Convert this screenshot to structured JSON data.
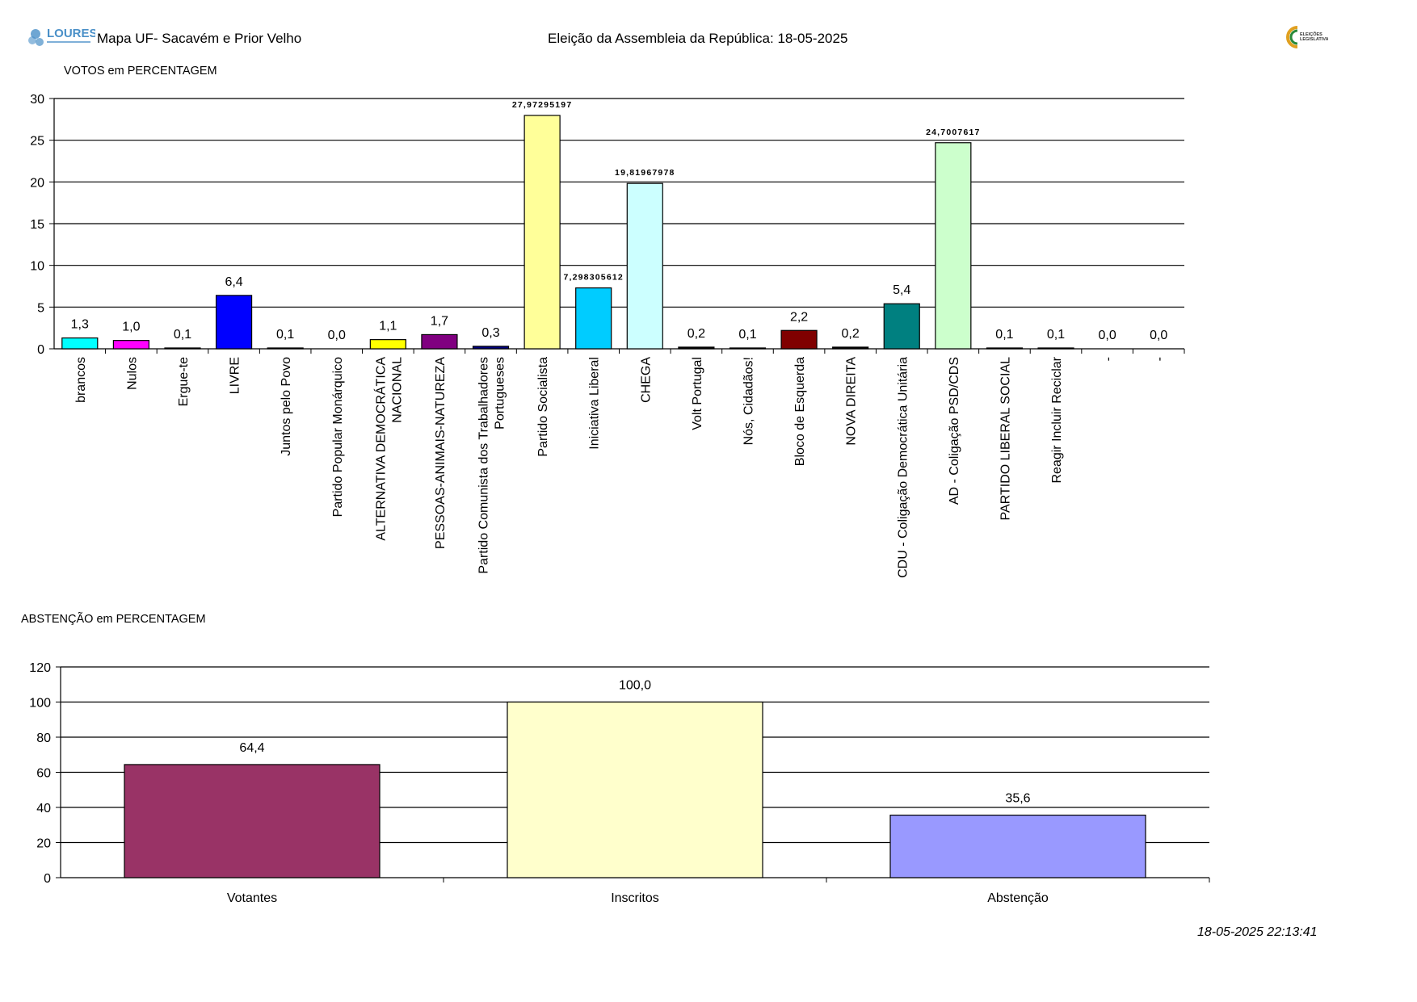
{
  "header": {
    "logo_text": "LOURES",
    "map_title": "Mapa UF- Sacavém e Prior Velho",
    "election_title": "Eleição da Assembleia da República: 18-05-2025",
    "right_logo_text": "ELEIÇÕES LEGISLATIVAS"
  },
  "colors": {
    "gridline": "#000000",
    "bar_border": "#000000",
    "loures_logo": "#4a90c8",
    "right_logo": "#e0a020"
  },
  "chart_data": [
    {
      "type": "bar",
      "title": "VOTOS em PERCENTAGEM",
      "xlabel": "",
      "ylabel": "",
      "ylim": [
        0,
        30
      ],
      "yticks": [
        0,
        5,
        10,
        15,
        20,
        25,
        30
      ],
      "grid": true,
      "legend": "none",
      "categories": [
        "brancos",
        "Nulos",
        "Ergue-te",
        "LIVRE",
        "Juntos pelo Povo",
        "Partido Popular Monárquico",
        "ALTERNATIVA DEMOCRÁTICA NACIONAL",
        "PESSOAS-ANIMAIS-NATUREZA",
        "Partido Comunista dos Trabalhadores Portugueses",
        "Partido Socialista",
        "Iniciativa Liberal",
        "CHEGA",
        "Volt Portugal",
        "Nós, Cidadãos!",
        "Bloco de Esquerda",
        "NOVA DIREITA",
        "CDU - Coligação Democrática Unitária",
        "AD - Coligação PSD/CDS",
        "PARTIDO LIBERAL SOCIAL",
        "Reagir Incluir Reciclar",
        "-",
        "-"
      ],
      "category_lines": [
        [
          "brancos"
        ],
        [
          "Nulos"
        ],
        [
          "Ergue-te"
        ],
        [
          "LIVRE"
        ],
        [
          "Juntos pelo Povo"
        ],
        [
          "Partido Popular Monárquico"
        ],
        [
          "ALTERNATIVA DEMOCRÁTICA",
          "NACIONAL"
        ],
        [
          "PESSOAS-ANIMAIS-NATUREZA"
        ],
        [
          "Partido Comunista dos Trabalhadores",
          "Portugueses"
        ],
        [
          "Partido Socialista"
        ],
        [
          "Iniciativa Liberal"
        ],
        [
          "CHEGA"
        ],
        [
          "Volt Portugal"
        ],
        [
          "Nós, Cidadãos!"
        ],
        [
          "Bloco de Esquerda"
        ],
        [
          "NOVA DIREITA"
        ],
        [
          "CDU - Coligação Democrática Unitária"
        ],
        [
          "AD - Coligação PSD/CDS"
        ],
        [
          "PARTIDO LIBERAL SOCIAL"
        ],
        [
          "Reagir Incluir Reciclar"
        ],
        [
          "-"
        ],
        [
          "-"
        ]
      ],
      "values": [
        1.3,
        1.0,
        0.1,
        6.4,
        0.1,
        0.0,
        1.1,
        1.7,
        0.3,
        27.97295197,
        7.298305612,
        19.81967978,
        0.2,
        0.1,
        2.2,
        0.2,
        5.4,
        24.7007617,
        0.1,
        0.1,
        0.0,
        0.0
      ],
      "labels": [
        "1,3",
        "1,0",
        "0,1",
        "6,4",
        "0,1",
        "0,0",
        "1,1",
        "1,7",
        "0,3",
        "27,97295197",
        "7,298305612",
        "19,81967978",
        "0,2",
        "0,1",
        "2,2",
        "0,2",
        "5,4",
        "24,7007617",
        "0,1",
        "0,1",
        "0,0",
        "0,0"
      ],
      "label_small": [
        false,
        false,
        false,
        false,
        false,
        false,
        false,
        false,
        false,
        true,
        true,
        true,
        false,
        false,
        false,
        false,
        false,
        true,
        false,
        false,
        false,
        false
      ],
      "colors": [
        "#00ffff",
        "#ff00ff",
        "#000000",
        "#0000ff",
        "#ffffff",
        "#ffffff",
        "#ffff00",
        "#800080",
        "#000080",
        "#ffff99",
        "#00ccff",
        "#ccffff",
        "#000000",
        "#ffffff",
        "#800000",
        "#000000",
        "#008080",
        "#ccffcc",
        "#000000",
        "#000000",
        "#ffffff",
        "#ffffff"
      ]
    },
    {
      "type": "bar",
      "title": "ABSTENÇÃO em PERCENTAGEM",
      "xlabel": "",
      "ylabel": "",
      "ylim": [
        0,
        120
      ],
      "yticks": [
        0,
        20,
        40,
        60,
        80,
        100,
        120
      ],
      "grid": true,
      "legend": "none",
      "categories": [
        "Votantes",
        "Inscritos",
        "Abstenção"
      ],
      "values": [
        64.4,
        100.0,
        35.6
      ],
      "labels": [
        "64,4",
        "100,0",
        "35,6"
      ],
      "colors": [
        "#993366",
        "#ffffcc",
        "#9999ff"
      ]
    }
  ],
  "footer": {
    "timestamp": "18-05-2025 22:13:41"
  }
}
